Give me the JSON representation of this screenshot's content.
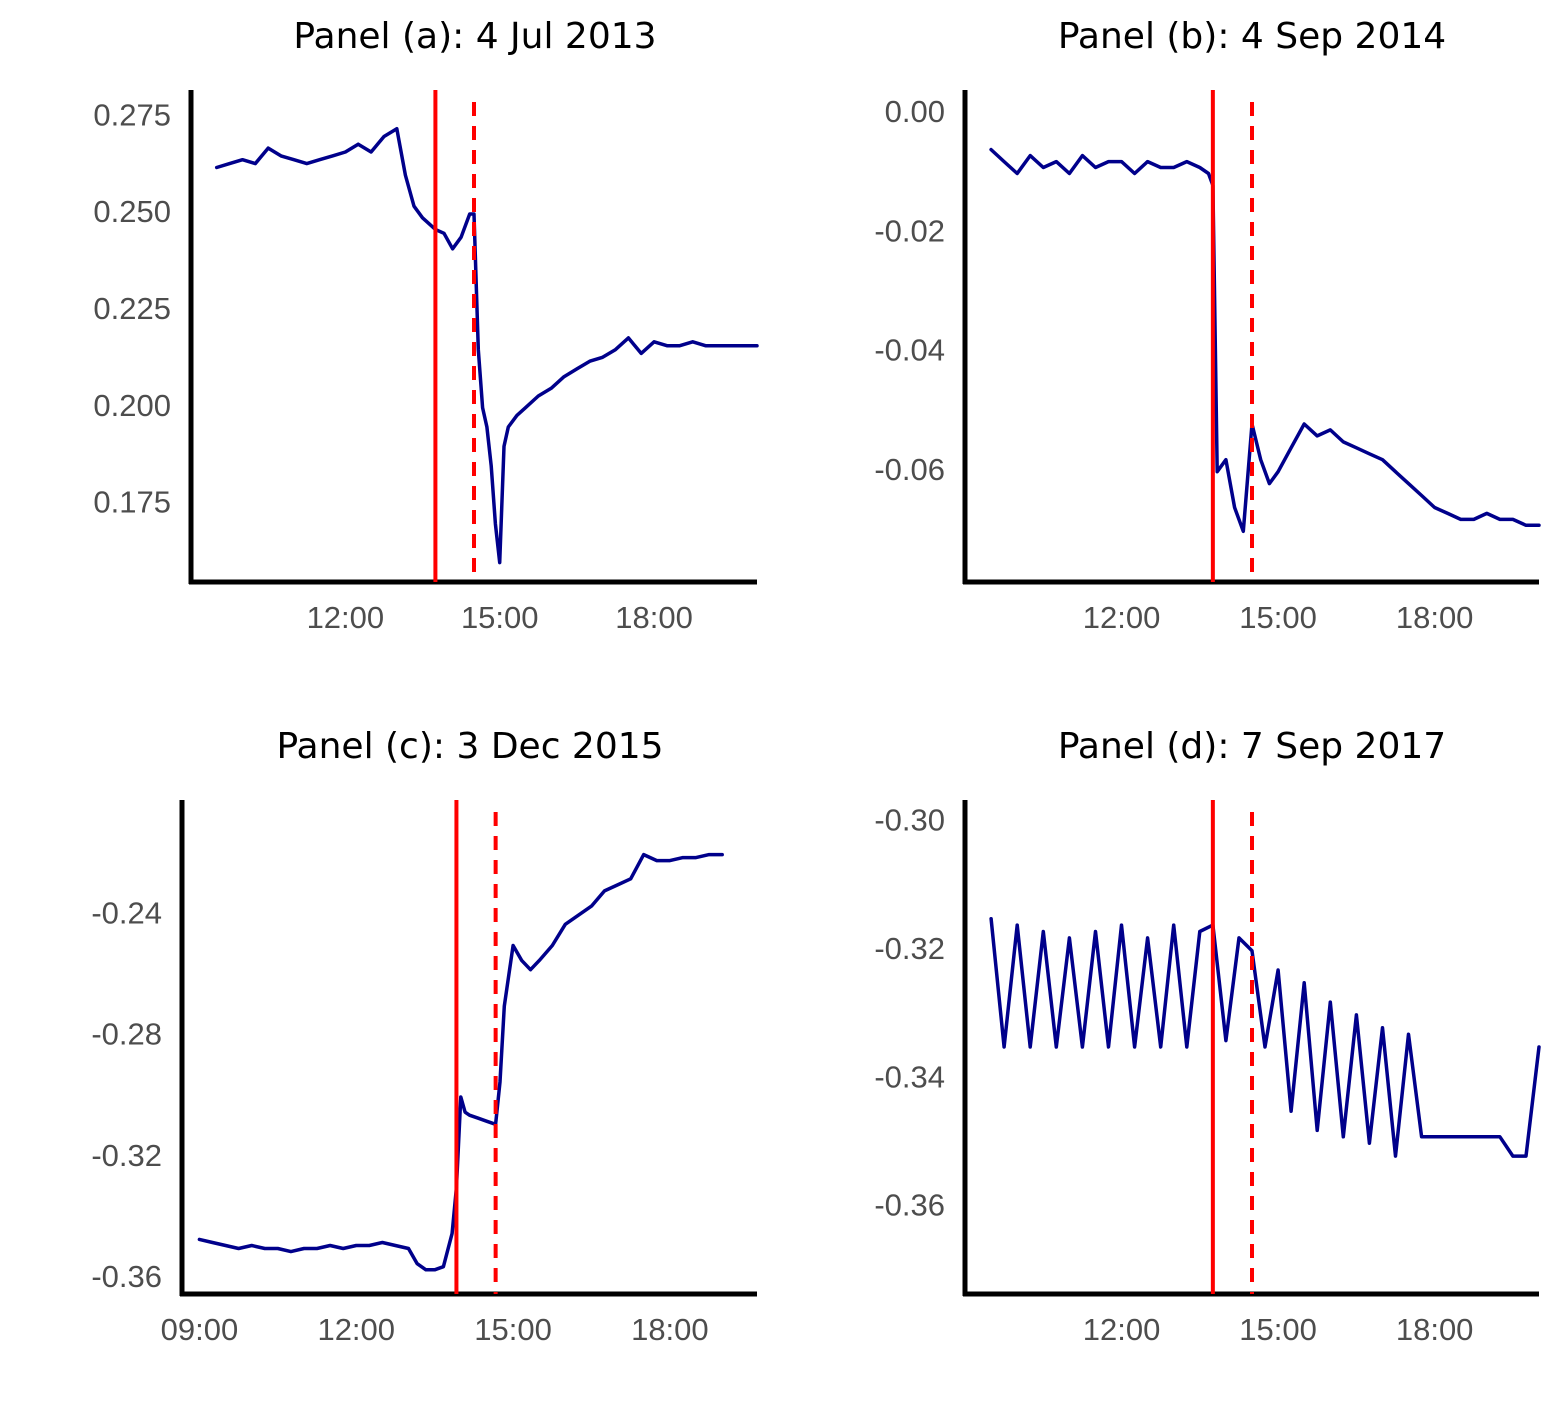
{
  "figure": {
    "background": "#ffffff"
  },
  "chart_data": [
    {
      "type": "line",
      "panel": "a",
      "title": "Panel (a): 4 Jul 2013",
      "xlabel": "",
      "ylabel": "",
      "x_ticks": [
        "12:00",
        "15:00",
        "18:00"
      ],
      "y_ticks": [
        "0.275",
        "0.250",
        "0.225",
        "0.200",
        "0.175"
      ],
      "xlim": [
        "09:00",
        "20:00"
      ],
      "ylim": [
        0.155,
        0.282
      ],
      "grid": false,
      "vlines": [
        {
          "x": "13:45",
          "style": "solid",
          "color": "#ff0000"
        },
        {
          "x": "14:30",
          "style": "dashed",
          "color": "#ff0000"
        }
      ],
      "series": [
        {
          "color": "#00008b",
          "x": [
            "09:30",
            "09:45",
            "10:00",
            "10:15",
            "10:30",
            "10:45",
            "11:00",
            "11:15",
            "11:30",
            "11:45",
            "12:00",
            "12:15",
            "12:30",
            "12:45",
            "13:00",
            "13:10",
            "13:20",
            "13:30",
            "13:40",
            "13:45",
            "13:55",
            "14:05",
            "14:15",
            "14:25",
            "14:30",
            "14:35",
            "14:40",
            "14:45",
            "14:50",
            "14:55",
            "15:00",
            "15:05",
            "15:10",
            "15:20",
            "15:30",
            "15:45",
            "16:00",
            "16:15",
            "16:30",
            "16:45",
            "17:00",
            "17:15",
            "17:30",
            "17:45",
            "18:00",
            "18:15",
            "18:30",
            "18:45",
            "19:00",
            "19:15",
            "19:30",
            "19:45",
            "20:00"
          ],
          "y": [
            0.262,
            0.263,
            0.264,
            0.263,
            0.267,
            0.265,
            0.264,
            0.263,
            0.264,
            0.265,
            0.266,
            0.268,
            0.266,
            0.27,
            0.272,
            0.26,
            0.252,
            0.249,
            0.247,
            0.246,
            0.245,
            0.241,
            0.244,
            0.25,
            0.25,
            0.215,
            0.2,
            0.195,
            0.185,
            0.17,
            0.16,
            0.19,
            0.195,
            0.198,
            0.2,
            0.203,
            0.205,
            0.208,
            0.21,
            0.212,
            0.213,
            0.215,
            0.218,
            0.214,
            0.217,
            0.216,
            0.216,
            0.217,
            0.216,
            0.216,
            0.216,
            0.216,
            0.216
          ]
        }
      ]
    },
    {
      "type": "line",
      "panel": "b",
      "title": "Panel (b): 4 Sep 2014",
      "xlabel": "",
      "ylabel": "",
      "x_ticks": [
        "12:00",
        "15:00",
        "18:00"
      ],
      "y_ticks": [
        "0.00",
        "-0.02",
        "-0.04",
        "-0.06"
      ],
      "xlim": [
        "09:00",
        "20:00"
      ],
      "ylim": [
        -0.0785,
        0.004
      ],
      "grid": false,
      "vlines": [
        {
          "x": "13:45",
          "style": "solid",
          "color": "#ff0000"
        },
        {
          "x": "14:30",
          "style": "dashed",
          "color": "#ff0000"
        }
      ],
      "series": [
        {
          "color": "#00008b",
          "x": [
            "09:30",
            "09:45",
            "10:00",
            "10:15",
            "10:30",
            "10:45",
            "11:00",
            "11:15",
            "11:30",
            "11:45",
            "12:00",
            "12:15",
            "12:30",
            "12:45",
            "13:00",
            "13:15",
            "13:30",
            "13:40",
            "13:45",
            "13:50",
            "14:00",
            "14:10",
            "14:20",
            "14:30",
            "14:40",
            "14:50",
            "15:00",
            "15:15",
            "15:30",
            "15:45",
            "16:00",
            "16:15",
            "16:30",
            "16:45",
            "17:00",
            "17:15",
            "17:30",
            "17:45",
            "18:00",
            "18:15",
            "18:30",
            "18:45",
            "19:00",
            "19:15",
            "19:30",
            "19:45",
            "20:00"
          ],
          "y": [
            -0.006,
            -0.008,
            -0.01,
            -0.007,
            -0.009,
            -0.008,
            -0.01,
            -0.007,
            -0.009,
            -0.008,
            -0.008,
            -0.01,
            -0.008,
            -0.009,
            -0.009,
            -0.008,
            -0.009,
            -0.01,
            -0.012,
            -0.06,
            -0.058,
            -0.066,
            -0.07,
            -0.052,
            -0.058,
            -0.062,
            -0.06,
            -0.056,
            -0.052,
            -0.054,
            -0.053,
            -0.055,
            -0.056,
            -0.057,
            -0.058,
            -0.06,
            -0.062,
            -0.064,
            -0.066,
            -0.067,
            -0.068,
            -0.068,
            -0.067,
            -0.068,
            -0.068,
            -0.069,
            -0.069
          ]
        }
      ]
    },
    {
      "type": "line",
      "panel": "c",
      "title": "Panel (c): 3 Dec 2015",
      "xlabel": "",
      "ylabel": "",
      "x_ticks": [
        "09:00",
        "12:00",
        "15:00",
        "18:00"
      ],
      "y_ticks": [
        "-0.24",
        "-0.28",
        "-0.32",
        "-0.36"
      ],
      "xlim": [
        "08:40",
        "19:40"
      ],
      "ylim": [
        -0.365,
        -0.202
      ],
      "grid": false,
      "vlines": [
        {
          "x": "13:55",
          "style": "solid",
          "color": "#ff0000"
        },
        {
          "x": "14:40",
          "style": "dashed",
          "color": "#ff0000"
        }
      ],
      "series": [
        {
          "color": "#00008b",
          "x": [
            "09:00",
            "09:15",
            "09:30",
            "09:45",
            "10:00",
            "10:15",
            "10:30",
            "10:45",
            "11:00",
            "11:15",
            "11:30",
            "11:45",
            "12:00",
            "12:15",
            "12:30",
            "12:45",
            "13:00",
            "13:10",
            "13:20",
            "13:30",
            "13:40",
            "13:50",
            "13:55",
            "14:00",
            "14:05",
            "14:10",
            "14:20",
            "14:30",
            "14:40",
            "14:45",
            "14:50",
            "15:00",
            "15:10",
            "15:20",
            "15:30",
            "15:45",
            "16:00",
            "16:15",
            "16:30",
            "16:45",
            "17:00",
            "17:15",
            "17:30",
            "17:45",
            "18:00",
            "18:15",
            "18:30",
            "18:45",
            "19:00"
          ],
          "y": [
            -0.347,
            -0.348,
            -0.349,
            -0.35,
            -0.349,
            -0.35,
            -0.35,
            -0.351,
            -0.35,
            -0.35,
            -0.349,
            -0.35,
            -0.349,
            -0.349,
            -0.348,
            -0.349,
            -0.35,
            -0.355,
            -0.357,
            -0.357,
            -0.356,
            -0.345,
            -0.33,
            -0.3,
            -0.305,
            -0.306,
            -0.307,
            -0.308,
            -0.309,
            -0.295,
            -0.27,
            -0.25,
            -0.255,
            -0.258,
            -0.255,
            -0.25,
            -0.243,
            -0.24,
            -0.237,
            -0.232,
            -0.23,
            -0.228,
            -0.22,
            -0.222,
            -0.222,
            -0.221,
            -0.221,
            -0.22,
            -0.22
          ]
        }
      ]
    },
    {
      "type": "line",
      "panel": "d",
      "title": "Panel (d): 7 Sep 2017",
      "xlabel": "",
      "ylabel": "",
      "x_ticks": [
        "12:00",
        "15:00",
        "18:00"
      ],
      "y_ticks": [
        "-0.30",
        "-0.32",
        "-0.34",
        "-0.36"
      ],
      "xlim": [
        "09:00",
        "20:00"
      ],
      "ylim": [
        -0.3735,
        -0.2965
      ],
      "grid": false,
      "vlines": [
        {
          "x": "13:45",
          "style": "solid",
          "color": "#ff0000"
        },
        {
          "x": "14:30",
          "style": "dashed",
          "color": "#ff0000"
        }
      ],
      "series": [
        {
          "color": "#00008b",
          "x": [
            "09:30",
            "09:45",
            "10:00",
            "10:15",
            "10:30",
            "10:45",
            "11:00",
            "11:15",
            "11:30",
            "11:45",
            "12:00",
            "12:15",
            "12:30",
            "12:45",
            "13:00",
            "13:15",
            "13:30",
            "13:45",
            "14:00",
            "14:15",
            "14:30",
            "14:45",
            "15:00",
            "15:15",
            "15:30",
            "15:45",
            "16:00",
            "16:15",
            "16:30",
            "16:45",
            "17:00",
            "17:15",
            "17:30",
            "17:45",
            "18:00",
            "18:15",
            "18:30",
            "18:45",
            "19:00",
            "19:15",
            "19:30",
            "19:45",
            "20:00"
          ],
          "y": [
            -0.315,
            -0.335,
            -0.316,
            -0.335,
            -0.317,
            -0.335,
            -0.318,
            -0.335,
            -0.317,
            -0.335,
            -0.316,
            -0.335,
            -0.318,
            -0.335,
            -0.316,
            -0.335,
            -0.317,
            -0.316,
            -0.334,
            -0.318,
            -0.32,
            -0.335,
            -0.323,
            -0.345,
            -0.325,
            -0.348,
            -0.328,
            -0.349,
            -0.33,
            -0.35,
            -0.332,
            -0.352,
            -0.333,
            -0.349,
            -0.349,
            -0.349,
            -0.349,
            -0.349,
            -0.349,
            -0.349,
            -0.352,
            -0.352,
            -0.335
          ]
        }
      ]
    }
  ]
}
